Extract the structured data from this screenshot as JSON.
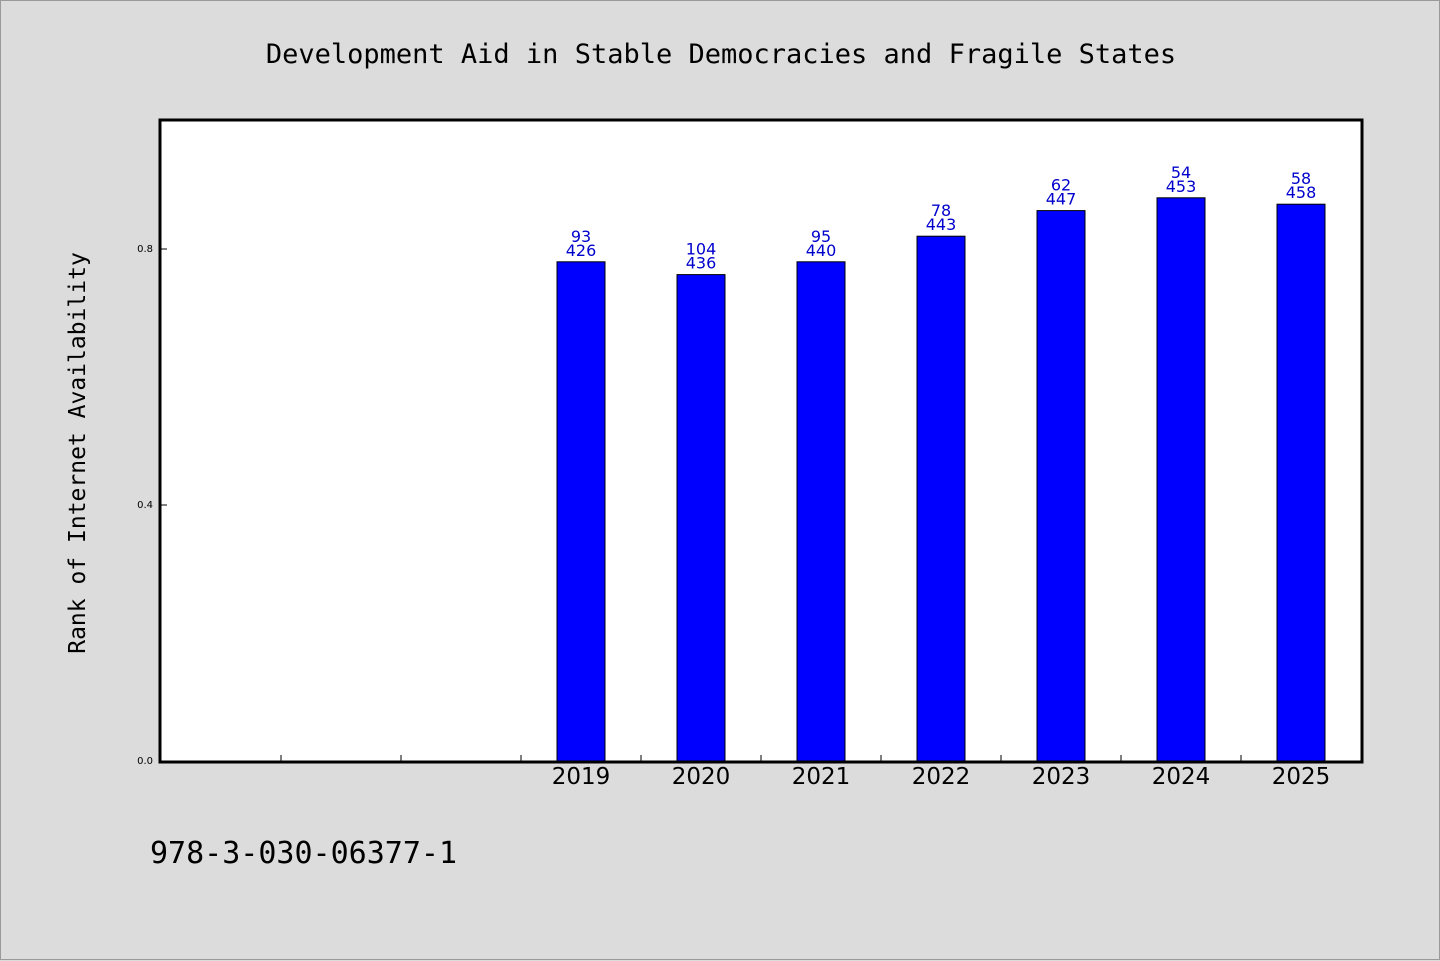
{
  "chart_data": {
    "type": "bar",
    "title": "Development Aid in Stable Democracies and Fragile States",
    "xlabel": "",
    "ylabel": "Rank of Internet Availability",
    "categories": [
      "",
      "",
      "",
      "2019",
      "2020",
      "2021",
      "2022",
      "2023",
      "2024",
      "2025"
    ],
    "series": [
      {
        "values": [
          null,
          null,
          null,
          0.78,
          0.76,
          0.78,
          0.82,
          0.86,
          0.88,
          0.87
        ],
        "label_top": [
          "",
          "",
          "",
          "93",
          "104",
          "95",
          "78",
          "62",
          "54",
          "58"
        ],
        "label_bottom": [
          "",
          "",
          "",
          "426",
          "436",
          "440",
          "443",
          "447",
          "453",
          "458"
        ]
      }
    ],
    "ylim": [
      0,
      1.0
    ],
    "yticks": [
      "0.0",
      "0.4",
      "0.8"
    ],
    "ytick_values": [
      0.0,
      0.4,
      0.8
    ],
    "bar_color": "#0000ff",
    "label_color": "#0000cc",
    "grid": false,
    "legend": "none"
  },
  "footer_text": "978-3-030-06377-1"
}
